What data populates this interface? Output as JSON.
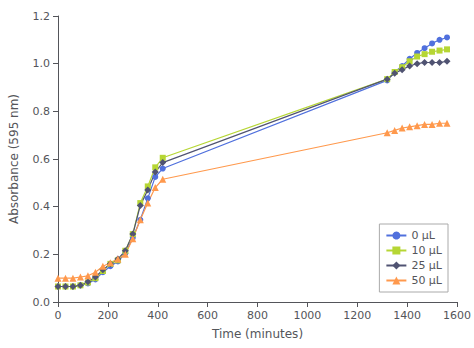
{
  "chart_data": {
    "type": "line",
    "title": "",
    "xlabel": "Time (minutes)",
    "ylabel": "Absorbance (595 nm)",
    "xlim": [
      0,
      1600
    ],
    "ylim": [
      0,
      1.2
    ],
    "xticks": [
      0,
      200,
      400,
      600,
      800,
      1000,
      1200,
      1400,
      1600
    ],
    "yticks": [
      {
        "value": 0,
        "label": "0.0"
      },
      0.2,
      0.4,
      0.6,
      0.8,
      {
        "value": 1,
        "label": "1.0"
      },
      1.2
    ],
    "grid": false,
    "legend": "lower right",
    "series": [
      {
        "name": "0 μL",
        "marker": "circle",
        "x": [
          0,
          30,
          60,
          90,
          120,
          150,
          180,
          210,
          240,
          270,
          300,
          330,
          360,
          390,
          420,
          1320,
          1350,
          1380,
          1410,
          1440,
          1470,
          1500,
          1530,
          1560
        ],
        "values": [
          0.065,
          0.065,
          0.065,
          0.07,
          0.078,
          0.095,
          0.125,
          0.15,
          0.17,
          0.205,
          0.27,
          0.345,
          0.435,
          0.525,
          0.56,
          0.93,
          0.965,
          0.99,
          1.02,
          1.045,
          1.065,
          1.085,
          1.1,
          1.11
        ]
      },
      {
        "name": "10 μL",
        "marker": "square",
        "x": [
          0,
          30,
          60,
          90,
          120,
          150,
          180,
          210,
          240,
          270,
          300,
          330,
          360,
          390,
          420,
          1320,
          1350,
          1380,
          1410,
          1440,
          1470,
          1500,
          1530,
          1560
        ],
        "values": [
          0.065,
          0.065,
          0.065,
          0.07,
          0.082,
          0.1,
          0.13,
          0.16,
          0.175,
          0.215,
          0.285,
          0.415,
          0.485,
          0.565,
          0.605,
          0.935,
          0.965,
          0.985,
          1.01,
          1.03,
          1.04,
          1.05,
          1.055,
          1.06
        ]
      },
      {
        "name": "25 μL",
        "marker": "diamond",
        "x": [
          0,
          30,
          60,
          90,
          120,
          150,
          180,
          210,
          240,
          270,
          300,
          330,
          360,
          390,
          420,
          1320,
          1350,
          1380,
          1410,
          1440,
          1470,
          1500,
          1530,
          1560
        ],
        "values": [
          0.065,
          0.065,
          0.065,
          0.07,
          0.085,
          0.105,
          0.135,
          0.16,
          0.18,
          0.215,
          0.285,
          0.405,
          0.47,
          0.545,
          0.585,
          0.935,
          0.96,
          0.975,
          0.99,
          1.0,
          1.005,
          1.005,
          1.005,
          1.01
        ]
      },
      {
        "name": "50 μL",
        "marker": "triangle",
        "x": [
          0,
          30,
          60,
          90,
          120,
          150,
          180,
          210,
          240,
          270,
          300,
          330,
          360,
          390,
          420,
          1320,
          1350,
          1380,
          1410,
          1440,
          1470,
          1500,
          1530,
          1560
        ],
        "values": [
          0.1,
          0.1,
          0.1,
          0.105,
          0.11,
          0.125,
          0.15,
          0.165,
          0.18,
          0.2,
          0.265,
          0.345,
          0.415,
          0.48,
          0.515,
          0.71,
          0.72,
          0.73,
          0.735,
          0.74,
          0.745,
          0.745,
          0.75,
          0.75
        ]
      }
    ]
  }
}
